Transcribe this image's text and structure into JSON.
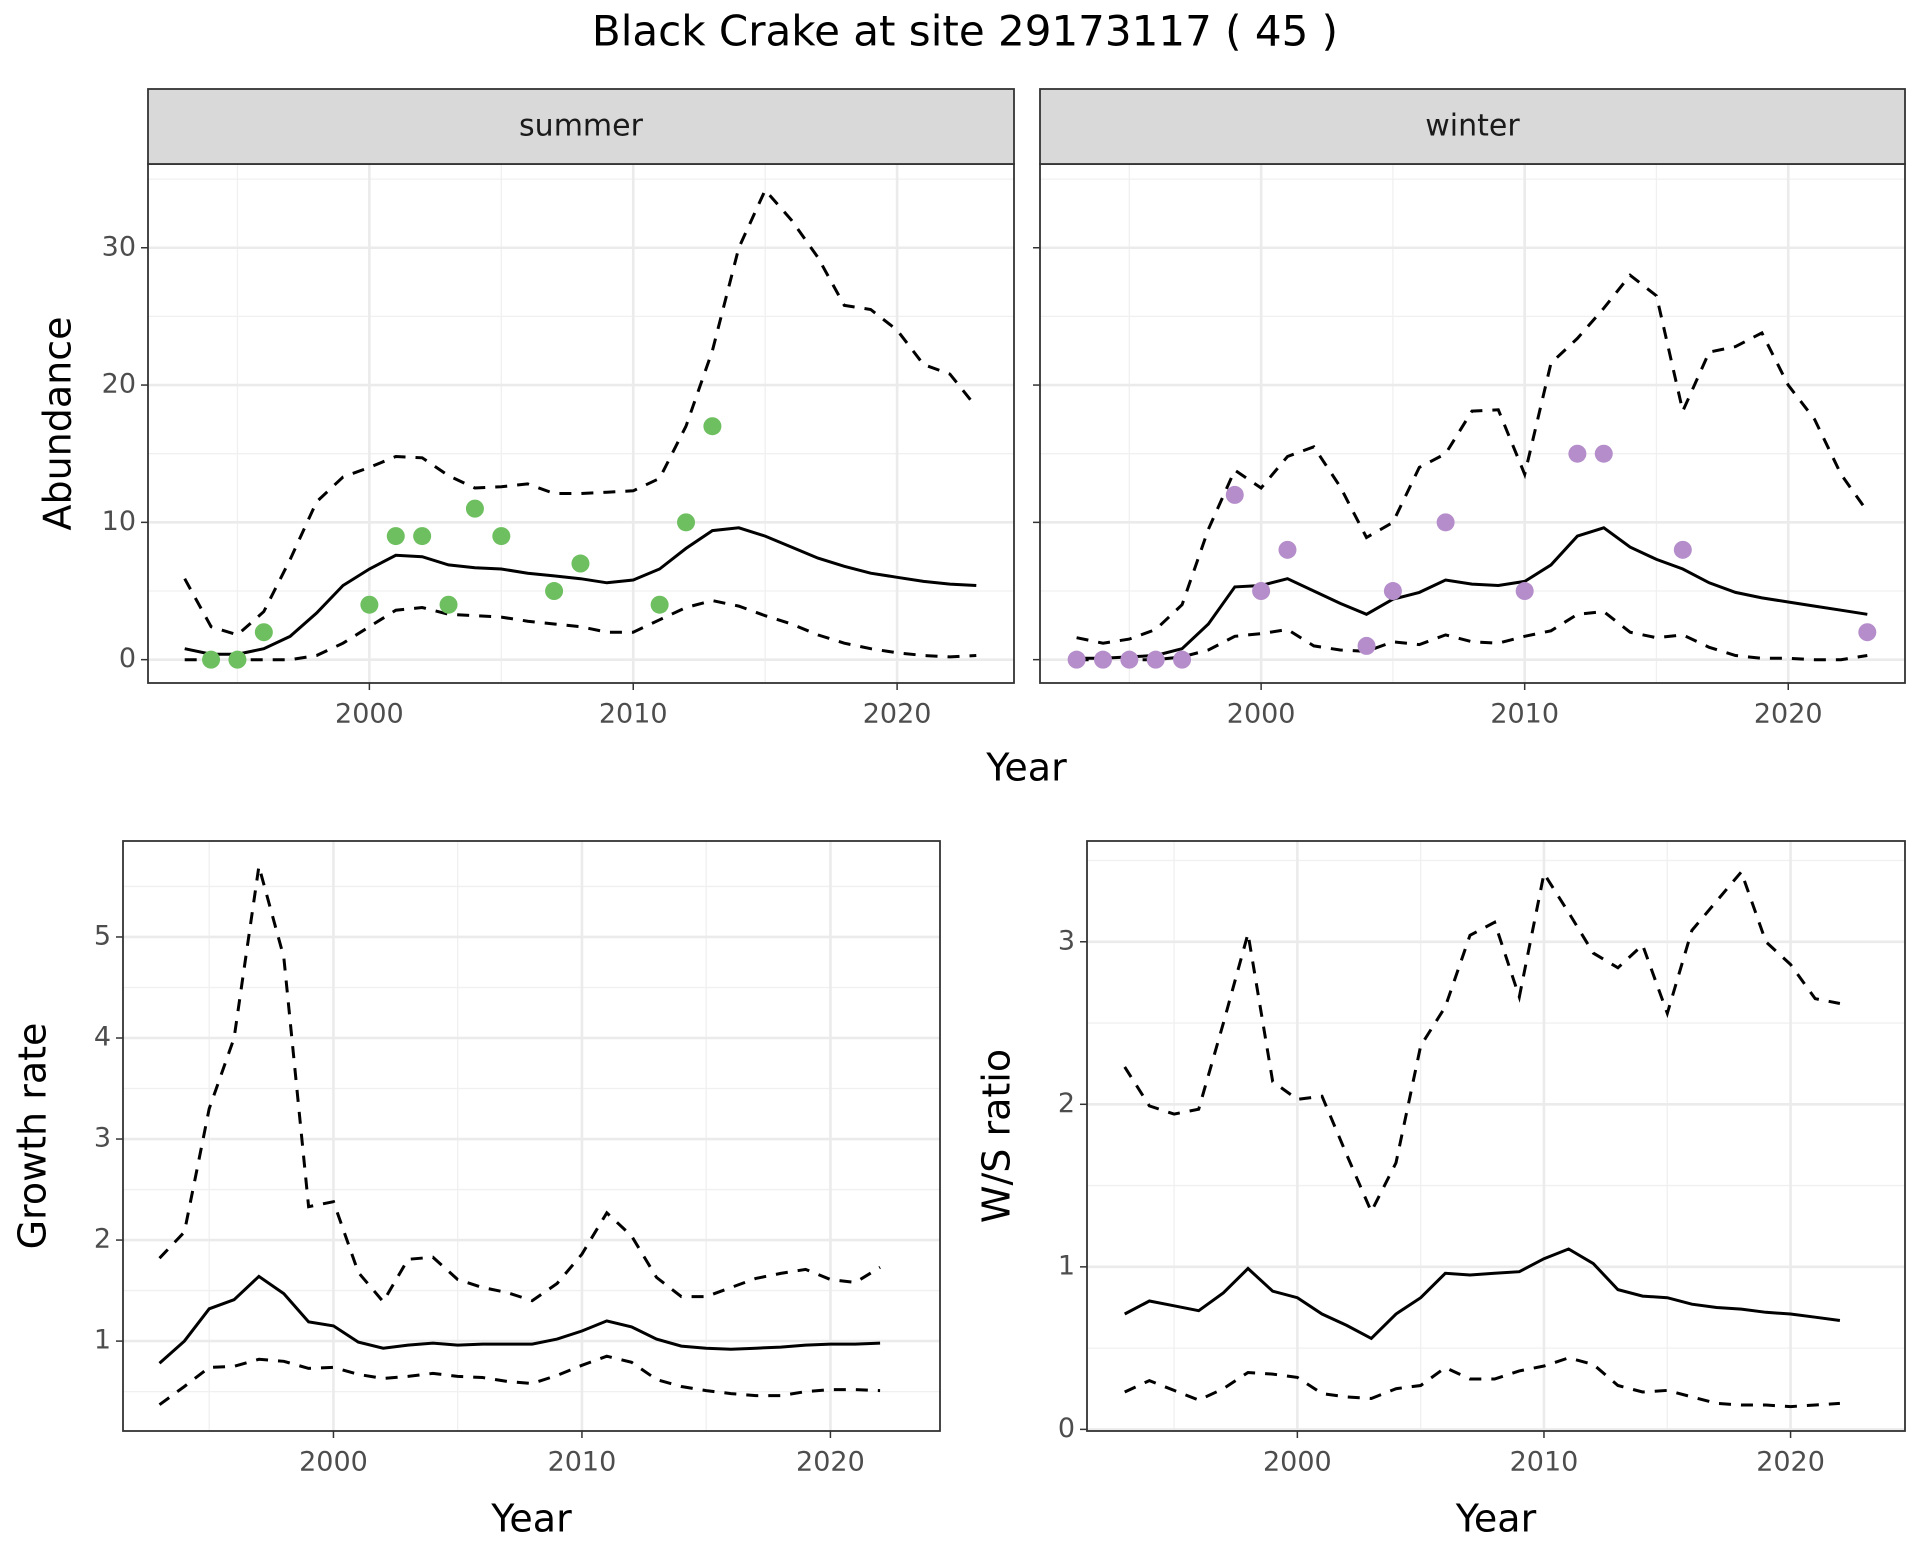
{
  "title": "Black Crake at site 29173117 ( 45 )",
  "chart_data": [
    {
      "type": "line",
      "facet": "summer",
      "xlabel": "Year",
      "ylabel": "Abundance",
      "x": [
        1993,
        1994,
        1995,
        1996,
        1997,
        1998,
        1999,
        2000,
        2001,
        2002,
        2003,
        2004,
        2005,
        2006,
        2007,
        2008,
        2009,
        2010,
        2011,
        2012,
        2013,
        2014,
        2015,
        2016,
        2017,
        2018,
        2019,
        2020,
        2021,
        2022,
        2023
      ],
      "xlim": [
        1991.61,
        2024.43
      ],
      "xticks": [
        2000,
        2010,
        2020
      ],
      "ylim": [
        -1.7,
        36.1
      ],
      "yticks": [
        0,
        10,
        20,
        30
      ],
      "grid": true,
      "series": [
        {
          "style": "solid",
          "color": "#000000",
          "values": [
            0.8,
            0.4,
            0.4,
            0.8,
            1.7,
            3.4,
            5.4,
            6.6,
            7.6,
            7.5,
            6.9,
            6.7,
            6.6,
            6.3,
            6.1,
            5.9,
            5.6,
            5.8,
            6.6,
            8.1,
            9.4,
            9.6,
            9.0,
            8.2,
            7.4,
            6.8,
            6.3,
            6.0,
            5.7,
            5.5,
            5.4
          ]
        },
        {
          "style": "dashed",
          "color": "#000000",
          "values": [
            0,
            0,
            0,
            0,
            0,
            0.3,
            1.2,
            2.4,
            3.6,
            3.8,
            3.3,
            3.2,
            3.1,
            2.8,
            2.6,
            2.4,
            2.0,
            2.0,
            2.9,
            3.8,
            4.3,
            3.9,
            3.2,
            2.6,
            1.8,
            1.2,
            0.8,
            0.5,
            0.3,
            0.2,
            0.3
          ]
        },
        {
          "style": "dashed",
          "color": "#000000",
          "values": [
            5.9,
            2.4,
            1.8,
            3.5,
            7.3,
            11.5,
            13.3,
            14.0,
            14.8,
            14.7,
            13.4,
            12.5,
            12.6,
            12.8,
            12.1,
            12.1,
            12.2,
            12.3,
            13.2,
            17.0,
            22.5,
            30.0,
            34.2,
            32.0,
            29.3,
            25.8,
            25.5,
            24.0,
            21.5,
            20.8,
            18.4
          ]
        },
        {
          "style": "points",
          "color": "#6dbf5f",
          "values": [
            null,
            0,
            0,
            2,
            null,
            null,
            null,
            4,
            9,
            9,
            4,
            11,
            9,
            null,
            5,
            7,
            null,
            null,
            4,
            10,
            17,
            null,
            null,
            null,
            null,
            null,
            null,
            null,
            null,
            null,
            null
          ]
        }
      ]
    },
    {
      "type": "line",
      "facet": "winter",
      "y_tick_labels": false,
      "x": [
        1993,
        1994,
        1995,
        1996,
        1997,
        1998,
        1999,
        2000,
        2001,
        2002,
        2003,
        2004,
        2005,
        2006,
        2007,
        2008,
        2009,
        2010,
        2011,
        2012,
        2013,
        2014,
        2015,
        2016,
        2017,
        2018,
        2019,
        2020,
        2021,
        2022,
        2023
      ],
      "xlim": [
        1991.61,
        2024.43
      ],
      "xticks": [
        2000,
        2010,
        2020
      ],
      "ylim": [
        -1.7,
        36.1
      ],
      "yticks": [
        0,
        10,
        20,
        30
      ],
      "grid": true,
      "series": [
        {
          "style": "solid",
          "color": "#000000",
          "values": [
            0.1,
            0.1,
            0.2,
            0.3,
            0.8,
            2.6,
            5.3,
            5.4,
            5.9,
            5.0,
            4.1,
            3.3,
            4.4,
            4.9,
            5.8,
            5.5,
            5.4,
            5.7,
            6.9,
            9.0,
            9.6,
            8.2,
            7.3,
            6.6,
            5.6,
            4.9,
            4.5,
            4.2,
            3.9,
            3.6,
            3.3
          ]
        },
        {
          "style": "dashed",
          "color": "#000000",
          "values": [
            0,
            0,
            0,
            0,
            0.2,
            0.7,
            1.7,
            1.9,
            2.2,
            1.0,
            0.7,
            0.6,
            1.3,
            1.1,
            1.8,
            1.3,
            1.2,
            1.7,
            2.1,
            3.3,
            3.5,
            2.0,
            1.6,
            1.8,
            0.9,
            0.3,
            0.1,
            0.1,
            0,
            0,
            0.3
          ]
        },
        {
          "style": "dashed",
          "color": "#000000",
          "values": [
            1.6,
            1.2,
            1.5,
            2.2,
            4.0,
            9.5,
            13.8,
            12.5,
            14.8,
            15.5,
            12.6,
            8.9,
            10.0,
            14.0,
            15.0,
            18.1,
            18.2,
            13.5,
            21.6,
            23.4,
            25.6,
            28.0,
            26.5,
            18.1,
            22.4,
            22.8,
            23.8,
            20.0,
            17.5,
            13.5,
            10.8
          ]
        },
        {
          "style": "points",
          "color": "#b48dca",
          "values": [
            0,
            0,
            0,
            0,
            0,
            null,
            12,
            5,
            8,
            null,
            null,
            1,
            5,
            null,
            10,
            null,
            null,
            5,
            null,
            15,
            15,
            null,
            null,
            8,
            null,
            null,
            null,
            null,
            null,
            null,
            2
          ]
        }
      ]
    },
    {
      "type": "line",
      "xlabel": "Year",
      "ylabel": "Growth rate",
      "x": [
        1993,
        1994,
        1995,
        1996,
        1997,
        1998,
        1999,
        2000,
        2001,
        2002,
        2003,
        2004,
        2005,
        2006,
        2007,
        2008,
        2009,
        2010,
        2011,
        2012,
        2013,
        2014,
        2015,
        2016,
        2017,
        2018,
        2019,
        2020,
        2021,
        2022
      ],
      "xlim": [
        1991.53,
        2024.41
      ],
      "xticks": [
        2000,
        2010,
        2020
      ],
      "ylim": [
        0.11,
        5.95
      ],
      "yticks": [
        1,
        2,
        3,
        4,
        5
      ],
      "grid": true,
      "series": [
        {
          "style": "solid",
          "color": "#000000",
          "values": [
            0.78,
            1.0,
            1.32,
            1.41,
            1.64,
            1.47,
            1.19,
            1.15,
            0.99,
            0.93,
            0.96,
            0.98,
            0.96,
            0.97,
            0.97,
            0.97,
            1.02,
            1.1,
            1.2,
            1.14,
            1.02,
            0.95,
            0.93,
            0.92,
            0.93,
            0.94,
            0.96,
            0.97,
            0.97,
            0.98
          ]
        },
        {
          "style": "dashed",
          "color": "#000000",
          "values": [
            0.37,
            0.55,
            0.74,
            0.75,
            0.82,
            0.8,
            0.73,
            0.74,
            0.67,
            0.63,
            0.65,
            0.68,
            0.65,
            0.64,
            0.6,
            0.58,
            0.66,
            0.76,
            0.85,
            0.79,
            0.62,
            0.55,
            0.51,
            0.48,
            0.46,
            0.46,
            0.5,
            0.52,
            0.52,
            0.51
          ]
        },
        {
          "style": "dashed",
          "color": "#000000",
          "values": [
            1.82,
            2.08,
            3.3,
            4.0,
            5.7,
            4.8,
            2.33,
            2.38,
            1.68,
            1.39,
            1.81,
            1.83,
            1.61,
            1.53,
            1.48,
            1.4,
            1.57,
            1.86,
            2.27,
            2.04,
            1.63,
            1.44,
            1.44,
            1.53,
            1.62,
            1.67,
            1.71,
            1.61,
            1.58,
            1.73
          ]
        }
      ]
    },
    {
      "type": "line",
      "xlabel": "Year",
      "ylabel": "W/S ratio",
      "x": [
        1993,
        1994,
        1995,
        1996,
        1997,
        1998,
        1999,
        2000,
        2001,
        2002,
        2003,
        2004,
        2005,
        2006,
        2007,
        2008,
        2009,
        2010,
        2011,
        2012,
        2013,
        2014,
        2015,
        2016,
        2017,
        2018,
        2019,
        2020,
        2021,
        2022
      ],
      "xlim": [
        1991.47,
        2024.64
      ],
      "xticks": [
        2000,
        2010,
        2020
      ],
      "ylim": [
        -0.01,
        3.62
      ],
      "yticks": [
        0,
        1,
        2,
        3
      ],
      "grid": true,
      "series": [
        {
          "style": "solid",
          "color": "#000000",
          "values": [
            0.71,
            0.79,
            0.76,
            0.73,
            0.84,
            0.99,
            0.85,
            0.81,
            0.71,
            0.64,
            0.56,
            0.71,
            0.81,
            0.96,
            0.95,
            0.96,
            0.97,
            1.05,
            1.11,
            1.02,
            0.86,
            0.82,
            0.81,
            0.77,
            0.75,
            0.74,
            0.72,
            0.71,
            0.69,
            0.67
          ]
        },
        {
          "style": "dashed",
          "color": "#000000",
          "values": [
            0.23,
            0.3,
            0.24,
            0.18,
            0.25,
            0.35,
            0.34,
            0.32,
            0.22,
            0.2,
            0.19,
            0.25,
            0.27,
            0.38,
            0.31,
            0.31,
            0.36,
            0.39,
            0.44,
            0.4,
            0.27,
            0.23,
            0.24,
            0.2,
            0.16,
            0.15,
            0.15,
            0.14,
            0.15,
            0.16
          ]
        },
        {
          "style": "dashed",
          "color": "#000000",
          "values": [
            2.23,
            1.99,
            1.94,
            1.97,
            2.5,
            3.05,
            2.14,
            2.03,
            2.05,
            1.69,
            1.34,
            1.64,
            2.36,
            2.6,
            3.04,
            3.12,
            2.66,
            3.42,
            3.18,
            2.93,
            2.84,
            2.98,
            2.56,
            3.07,
            3.25,
            3.43,
            3.0,
            2.86,
            2.65,
            2.62
          ]
        }
      ]
    }
  ]
}
